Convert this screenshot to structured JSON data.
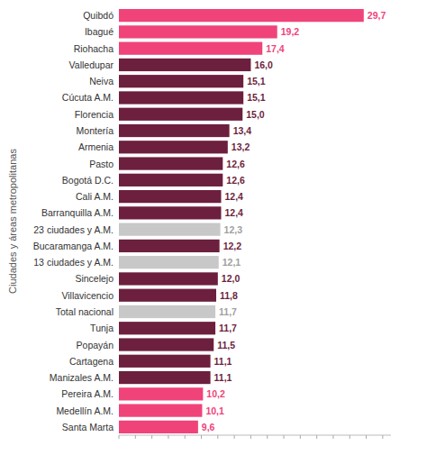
{
  "chart_data": {
    "type": "bar",
    "orientation": "horizontal",
    "y_label": "Ciudades y áreas metropolitanas",
    "categories": [
      "Quibdó",
      "Ibagué",
      "Riohacha",
      "Valledupar",
      "Neiva",
      "Cúcuta A.M.",
      "Florencia",
      "Montería",
      "Armenia",
      "Pasto",
      "Bogotá D.C.",
      "Cali A.M.",
      "Barranquilla A.M.",
      "23 ciudades y A.M.",
      "Bucaramanga A.M.",
      "13 ciudades y A.M.",
      "Sincelejo",
      "Villavicencio",
      "Total nacional",
      "Tunja",
      "Popayán",
      "Cartagena",
      "Manizales A.M.",
      "Pereira A.M.",
      "Medellín A.M.",
      "Santa Marta"
    ],
    "values": [
      29.7,
      19.2,
      17.4,
      16.0,
      15.1,
      15.1,
      15.0,
      13.4,
      13.2,
      12.6,
      12.6,
      12.4,
      12.4,
      12.3,
      12.2,
      12.1,
      12.0,
      11.8,
      11.7,
      11.7,
      11.5,
      11.1,
      11.1,
      10.2,
      10.1,
      9.6
    ],
    "value_labels": [
      "29,7",
      "19,2",
      "17,4",
      "16,0",
      "15,1",
      "15,1",
      "15,0",
      "13,4",
      "13,2",
      "12,6",
      "12,6",
      "12,4",
      "12,4",
      "12,3",
      "12,2",
      "12,1",
      "12,0",
      "11,8",
      "11,7",
      "11,7",
      "11,5",
      "11,1",
      "11,1",
      "10,2",
      "10,1",
      "9,6"
    ],
    "colors": [
      "#f0437a",
      "#f0437a",
      "#f0437a",
      "#6d1f3e",
      "#6d1f3e",
      "#6d1f3e",
      "#6d1f3e",
      "#6d1f3e",
      "#6d1f3e",
      "#6d1f3e",
      "#6d1f3e",
      "#6d1f3e",
      "#6d1f3e",
      "#c8c8c8",
      "#6d1f3e",
      "#c8c8c8",
      "#6d1f3e",
      "#6d1f3e",
      "#c8c8c8",
      "#6d1f3e",
      "#6d1f3e",
      "#6d1f3e",
      "#6d1f3e",
      "#f0437a",
      "#f0437a",
      "#f0437a"
    ],
    "xlim": [
      0,
      33
    ],
    "xticks": [
      0,
      2,
      4,
      6,
      8,
      10,
      12,
      14,
      16,
      18,
      20,
      22,
      24,
      26,
      28,
      30,
      32
    ],
    "tick_labels": "y",
    "data_labels": true,
    "grid": false
  }
}
